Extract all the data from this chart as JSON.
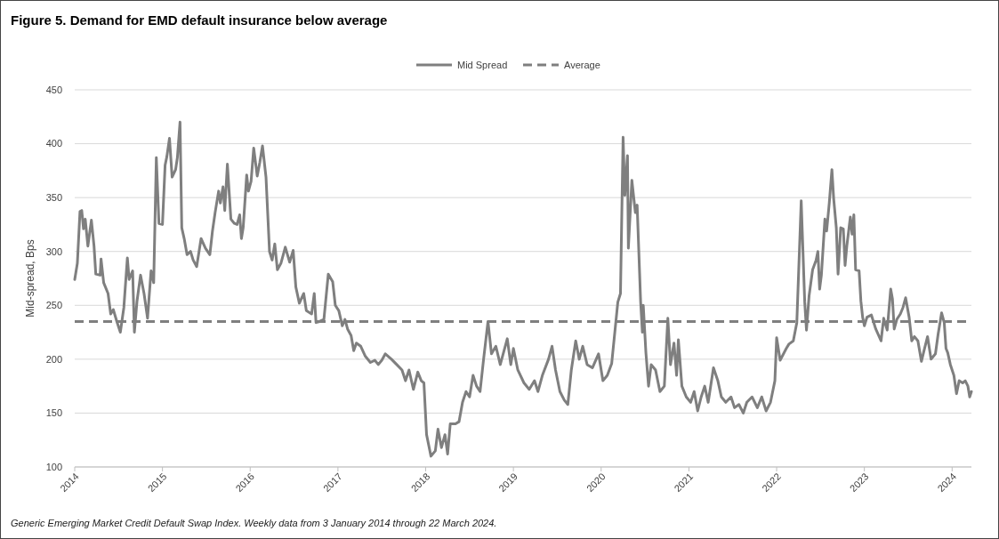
{
  "chart_data": {
    "type": "line",
    "title": "Figure 5. Demand for EMD default insurance below average",
    "ylabel": "Mid-spread, Bps",
    "annotations": [
      "Generic Emerging Market Credit Default Swap Index. Weekly data from 3 January 2014 through 22 March 2024."
    ],
    "xlim": [
      2014,
      2024.22
    ],
    "xticks": [
      2014,
      2015,
      2016,
      2017,
      2018,
      2019,
      2020,
      2021,
      2022,
      2023,
      2024
    ],
    "ylim": [
      100,
      450
    ],
    "yticks": [
      100,
      150,
      200,
      250,
      300,
      350,
      400,
      450
    ],
    "grid": "y",
    "legend": "top",
    "line_style": "solid",
    "marker": "none",
    "ref_lines": [
      {
        "axis": "y",
        "value": 235,
        "label": "Average",
        "color": "#7f7f7f",
        "line_style": "dashed"
      }
    ],
    "series": [
      {
        "name": "Mid Spread",
        "color": "#7f7f7f",
        "x": [
          2014.0,
          2014.03,
          2014.06,
          2014.08,
          2014.1,
          2014.12,
          2014.15,
          2014.19,
          2014.22,
          2014.24,
          2014.29,
          2014.3,
          2014.33,
          2014.38,
          2014.41,
          2014.44,
          2014.48,
          2014.52,
          2014.56,
          2014.6,
          2014.62,
          2014.66,
          2014.68,
          2014.71,
          2014.75,
          2014.79,
          2014.83,
          2014.87,
          2014.9,
          2014.93,
          2014.96,
          2015.0,
          2015.03,
          2015.05,
          2015.08,
          2015.11,
          2015.15,
          2015.17,
          2015.2,
          2015.22,
          2015.25,
          2015.28,
          2015.32,
          2015.35,
          2015.39,
          2015.44,
          2015.49,
          2015.54,
          2015.57,
          2015.6,
          2015.64,
          2015.66,
          2015.69,
          2015.71,
          2015.74,
          2015.78,
          2015.82,
          2015.85,
          2015.88,
          2015.9,
          2015.92,
          2015.96,
          2015.98,
          2016.01,
          2016.04,
          2016.08,
          2016.11,
          2016.14,
          2016.18,
          2016.22,
          2016.25,
          2016.28,
          2016.31,
          2016.35,
          2016.4,
          2016.45,
          2016.49,
          2016.52,
          2016.56,
          2016.61,
          2016.64,
          2016.7,
          2016.73,
          2016.75,
          2016.79,
          2016.84,
          2016.89,
          2016.94,
          2016.97,
          2017.01,
          2017.05,
          2017.08,
          2017.11,
          2017.15,
          2017.18,
          2017.21,
          2017.26,
          2017.31,
          2017.37,
          2017.42,
          2017.46,
          2017.5,
          2017.54,
          2017.61,
          2017.67,
          2017.73,
          2017.77,
          2017.81,
          2017.86,
          2017.91,
          2017.95,
          2017.98,
          2018.01,
          2018.06,
          2018.11,
          2018.14,
          2018.18,
          2018.22,
          2018.25,
          2018.28,
          2018.34,
          2018.38,
          2018.42,
          2018.46,
          2018.5,
          2018.54,
          2018.58,
          2018.62,
          2018.66,
          2018.71,
          2018.75,
          2018.8,
          2018.85,
          2018.93,
          2018.97,
          2019.0,
          2019.05,
          2019.12,
          2019.18,
          2019.24,
          2019.28,
          2019.33,
          2019.4,
          2019.44,
          2019.48,
          2019.53,
          2019.58,
          2019.62,
          2019.66,
          2019.71,
          2019.75,
          2019.79,
          2019.84,
          2019.9,
          2019.97,
          2020.02,
          2020.07,
          2020.12,
          2020.19,
          2020.22,
          2020.25,
          2020.27,
          2020.3,
          2020.31,
          2020.35,
          2020.39,
          2020.41,
          2020.45,
          2020.47,
          2020.48,
          2020.51,
          2020.54,
          2020.57,
          2020.62,
          2020.67,
          2020.72,
          2020.76,
          2020.79,
          2020.83,
          2020.86,
          2020.88,
          2020.92,
          2020.97,
          2021.02,
          2021.06,
          2021.1,
          2021.14,
          2021.18,
          2021.22,
          2021.28,
          2021.33,
          2021.37,
          2021.42,
          2021.48,
          2021.52,
          2021.57,
          2021.62,
          2021.66,
          2021.72,
          2021.78,
          2021.83,
          2021.88,
          2021.93,
          2021.98,
          2022.0,
          2022.04,
          2022.11,
          2022.14,
          2022.19,
          2022.23,
          2022.28,
          2022.32,
          2022.34,
          2022.37,
          2022.41,
          2022.45,
          2022.47,
          2022.49,
          2022.51,
          2022.55,
          2022.57,
          2022.6,
          2022.63,
          2022.65,
          2022.68,
          2022.7,
          2022.73,
          2022.76,
          2022.78,
          2022.8,
          2022.84,
          2022.86,
          2022.88,
          2022.9,
          2022.94,
          2022.96,
          2022.98,
          2023.0,
          2023.03,
          2023.08,
          2023.13,
          2023.19,
          2023.22,
          2023.26,
          2023.3,
          2023.32,
          2023.34,
          2023.37,
          2023.41,
          2023.44,
          2023.47,
          2023.51,
          2023.54,
          2023.57,
          2023.61,
          2023.65,
          2023.68,
          2023.72,
          2023.76,
          2023.81,
          2023.84,
          2023.88,
          2023.91,
          2023.93,
          2023.95,
          2023.98,
          2024.02,
          2024.05,
          2024.08,
          2024.12,
          2024.15,
          2024.18,
          2024.2,
          2024.22
        ],
        "values": [
          274,
          289,
          337,
          338,
          321,
          330,
          305,
          329,
          305,
          279,
          278,
          293,
          271,
          261,
          242,
          246,
          235,
          225,
          248,
          294,
          274,
          282,
          225,
          254,
          278,
          261,
          238,
          282,
          271,
          387,
          326,
          325,
          380,
          388,
          405,
          369,
          376,
          387,
          420,
          322,
          311,
          297,
          300,
          292,
          286,
          312,
          303,
          297,
          319,
          336,
          356,
          345,
          360,
          338,
          381,
          330,
          326,
          325,
          334,
          312,
          322,
          371,
          356,
          365,
          396,
          370,
          383,
          398,
          369,
          300,
          292,
          307,
          283,
          289,
          304,
          290,
          301,
          267,
          252,
          261,
          245,
          242,
          261,
          234,
          235,
          237,
          279,
          272,
          250,
          245,
          231,
          237,
          228,
          222,
          208,
          215,
          212,
          203,
          197,
          199,
          195,
          199,
          205,
          200,
          195,
          190,
          180,
          190,
          172,
          188,
          180,
          178,
          130,
          110,
          115,
          135,
          118,
          130,
          112,
          140,
          140,
          142,
          160,
          170,
          165,
          185,
          175,
          170,
          200,
          235,
          205,
          212,
          195,
          219,
          195,
          210,
          190,
          178,
          172,
          180,
          170,
          185,
          200,
          212,
          190,
          170,
          162,
          158,
          190,
          217,
          200,
          212,
          195,
          192,
          205,
          180,
          185,
          196,
          253,
          261,
          406,
          352,
          389,
          303,
          366,
          336,
          343,
          253,
          225,
          250,
          206,
          175,
          195,
          190,
          170,
          175,
          238,
          195,
          215,
          185,
          218,
          175,
          165,
          160,
          170,
          152,
          165,
          175,
          160,
          192,
          180,
          165,
          160,
          165,
          155,
          158,
          150,
          160,
          165,
          155,
          165,
          152,
          160,
          180,
          220,
          199,
          210,
          214,
          217,
          234,
          347,
          253,
          227,
          259,
          283,
          292,
          300,
          265,
          278,
          330,
          319,
          345,
          376,
          349,
          322,
          279,
          322,
          321,
          287,
          305,
          332,
          316,
          334,
          283,
          282,
          254,
          239,
          231,
          239,
          241,
          228,
          217,
          238,
          227,
          265,
          256,
          228,
          237,
          242,
          248,
          257,
          239,
          217,
          221,
          217,
          198,
          208,
          221,
          200,
          205,
          223,
          243,
          234,
          210,
          206,
          195,
          185,
          168,
          180,
          178,
          180,
          175,
          165,
          170
        ]
      }
    ]
  }
}
